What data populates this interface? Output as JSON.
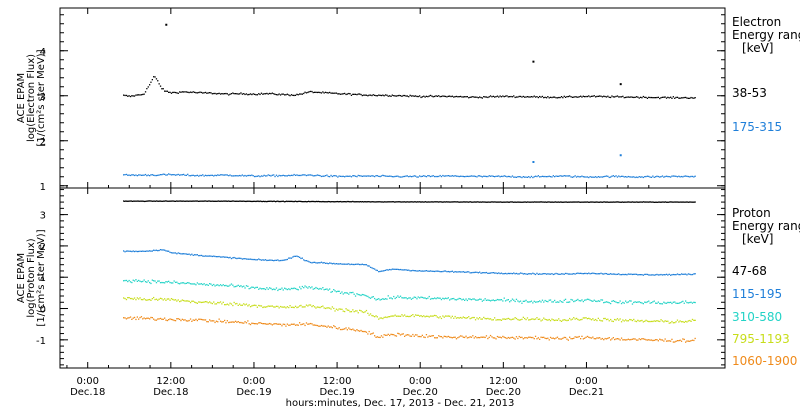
{
  "chart_data": [
    {
      "type": "scatter",
      "panel": "electron",
      "ylabel_lines": [
        "ACE EPAM",
        "log(Electron Flux)",
        "[1/(cm²s ster MeV)]"
      ],
      "ylim": [
        0.95,
        4.95
      ],
      "yticks": [
        1,
        2,
        3,
        4
      ],
      "legend_title": [
        "Electron",
        "Energy ranges",
        "[keV]"
      ],
      "series": [
        {
          "name": "38-53",
          "color": "#000000",
          "x": [
            5.1,
            6,
            8,
            9,
            9.5,
            10,
            10.5,
            11,
            12,
            14,
            16,
            18,
            20,
            22,
            24,
            26,
            28,
            30,
            32,
            36,
            40,
            44,
            48,
            52,
            56,
            60,
            64,
            68,
            72,
            76,
            80,
            84,
            87.6
          ],
          "y": [
            3.02,
            3.0,
            3.05,
            3.3,
            3.45,
            3.35,
            3.2,
            3.12,
            3.08,
            3.1,
            3.08,
            3.07,
            3.05,
            3.06,
            3.05,
            3.06,
            3.04,
            3.03,
            3.1,
            3.06,
            3.03,
            3.02,
            3.0,
            3.0,
            2.98,
            3.0,
            2.99,
            2.98,
            3.0,
            2.99,
            2.98,
            2.97,
            2.97
          ]
        },
        {
          "name": "175-315",
          "color": "#1f7fd9",
          "x": [
            5.1,
            8,
            12,
            16,
            20,
            24,
            28,
            32,
            36,
            40,
            44,
            48,
            52,
            56,
            60,
            64,
            68,
            72,
            76,
            80,
            84,
            87.6
          ],
          "y": [
            1.25,
            1.25,
            1.26,
            1.24,
            1.25,
            1.23,
            1.24,
            1.25,
            1.22,
            1.23,
            1.22,
            1.22,
            1.23,
            1.22,
            1.22,
            1.21,
            1.23,
            1.21,
            1.22,
            1.21,
            1.22,
            1.22
          ]
        }
      ],
      "outliers": [
        {
          "series": "38-53",
          "x": [
            11.2,
            64.2,
            76.8
          ],
          "y": [
            4.6,
            3.78,
            3.28
          ]
        },
        {
          "series": "175-315",
          "x": [
            64.2,
            76.8
          ],
          "y": [
            1.55,
            1.7
          ]
        }
      ]
    },
    {
      "type": "scatter",
      "panel": "proton",
      "ylabel_lines": [
        "ACE EPAM",
        "log(Proton Flux)",
        "[1/(cm²s ster MeV)]"
      ],
      "ylim": [
        -1.9,
        3.85
      ],
      "yticks": [
        -1,
        0,
        1,
        2,
        3
      ],
      "legend_title": [
        "Proton",
        "Energy ranges",
        "[keV]"
      ],
      "series": [
        {
          "name": "47-68",
          "color": "#000000",
          "x": [
            5.1,
            20,
            40,
            60,
            87.6
          ],
          "y": [
            3.45,
            3.45,
            3.43,
            3.42,
            3.42
          ]
        },
        {
          "name": "115-195",
          "color": "#1f7fd9",
          "x": [
            5.1,
            8,
            11,
            12,
            16,
            20,
            24,
            28,
            30,
            32,
            36,
            40,
            42,
            44,
            48,
            52,
            56,
            60,
            64,
            68,
            72,
            76,
            80,
            84,
            87.6
          ],
          "y": [
            1.85,
            1.85,
            1.9,
            1.8,
            1.72,
            1.65,
            1.58,
            1.55,
            1.7,
            1.5,
            1.45,
            1.42,
            1.2,
            1.28,
            1.22,
            1.2,
            1.17,
            1.15,
            1.13,
            1.12,
            1.15,
            1.12,
            1.1,
            1.1,
            1.12
          ]
        },
        {
          "name": "310-580",
          "color": "#22d3c6",
          "x": [
            5.1,
            8,
            12,
            16,
            20,
            24,
            28,
            32,
            36,
            40,
            42,
            44,
            48,
            52,
            56,
            60,
            64,
            68,
            72,
            76,
            80,
            84,
            87.6
          ],
          "y": [
            0.92,
            0.9,
            0.85,
            0.8,
            0.75,
            0.68,
            0.62,
            0.7,
            0.55,
            0.45,
            0.3,
            0.38,
            0.35,
            0.33,
            0.3,
            0.28,
            0.25,
            0.25,
            0.3,
            0.22,
            0.22,
            0.2,
            0.22
          ]
        },
        {
          "name": "795-1193",
          "color": "#c7dd1a",
          "x": [
            5.1,
            8,
            12,
            16,
            20,
            24,
            28,
            32,
            36,
            40,
            42,
            44,
            48,
            52,
            56,
            60,
            64,
            68,
            72,
            76,
            80,
            84,
            87.6
          ],
          "y": [
            0.35,
            0.32,
            0.3,
            0.22,
            0.18,
            0.12,
            0.05,
            0.1,
            0.0,
            -0.1,
            -0.3,
            -0.2,
            -0.22,
            -0.25,
            -0.3,
            -0.32,
            -0.3,
            -0.35,
            -0.3,
            -0.35,
            -0.38,
            -0.4,
            -0.38
          ]
        },
        {
          "name": "1060-1900",
          "color": "#ef8a1a",
          "x": [
            5.1,
            8,
            12,
            16,
            20,
            24,
            28,
            32,
            36,
            40,
            42,
            44,
            48,
            52,
            56,
            60,
            64,
            68,
            72,
            76,
            80,
            84,
            87.6
          ],
          "y": [
            -0.28,
            -0.3,
            -0.32,
            -0.35,
            -0.4,
            -0.45,
            -0.5,
            -0.48,
            -0.6,
            -0.7,
            -0.9,
            -0.8,
            -0.85,
            -0.9,
            -0.88,
            -0.92,
            -0.9,
            -0.95,
            -0.9,
            -0.95,
            -0.98,
            -1.0,
            -1.0
          ]
        }
      ]
    }
  ],
  "x_axis": {
    "range_hours": [
      -4,
      92
    ],
    "ticks": [
      {
        "hour": 0,
        "time": "0:00",
        "date": "Dec.18"
      },
      {
        "hour": 12,
        "time": "12:00",
        "date": "Dec.18"
      },
      {
        "hour": 24,
        "time": "0:00",
        "date": "Dec.19"
      },
      {
        "hour": 36,
        "time": "12:00",
        "date": "Dec.19"
      },
      {
        "hour": 48,
        "time": "0:00",
        "date": "Dec.20"
      },
      {
        "hour": 60,
        "time": "12:00",
        "date": "Dec.20"
      },
      {
        "hour": 72,
        "time": "0:00",
        "date": "Dec.21"
      }
    ],
    "xlabel": "hours:minutes, Dec. 17, 2013 - Dec. 21, 2013"
  }
}
